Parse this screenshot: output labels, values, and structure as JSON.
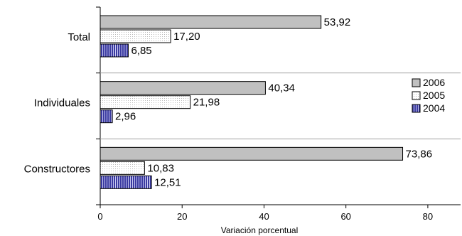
{
  "chart_data": {
    "type": "bar",
    "orientation": "horizontal",
    "title": "",
    "xlabel": "Variación porcentual",
    "ylabel": "",
    "xlim": [
      0,
      88
    ],
    "xticks": [
      0,
      20,
      40,
      60,
      80
    ],
    "tick_labels": [
      "0",
      "20",
      "40",
      "60",
      "80"
    ],
    "categories": [
      "Total",
      "Individuales",
      "Constructores"
    ],
    "series": [
      {
        "name": "2006",
        "values": [
          53.92,
          40.34,
          73.86
        ],
        "labels": [
          "53,92",
          "40,34",
          "73,86"
        ],
        "color": "#c0c0c0",
        "pattern": "solid"
      },
      {
        "name": "2005",
        "values": [
          17.2,
          21.98,
          10.83
        ],
        "labels": [
          "17,20",
          "21,98",
          "10,83"
        ],
        "color": "#ffffff",
        "pattern": "dots"
      },
      {
        "name": "2004",
        "values": [
          6.85,
          2.96,
          12.51
        ],
        "labels": [
          "6,85",
          "2,96",
          "12,51"
        ],
        "color": "#4a4aa8",
        "pattern": "vertical-stripes"
      }
    ],
    "legend": {
      "position": "right",
      "order": [
        "2006",
        "2005",
        "2004"
      ]
    },
    "grid": false
  }
}
